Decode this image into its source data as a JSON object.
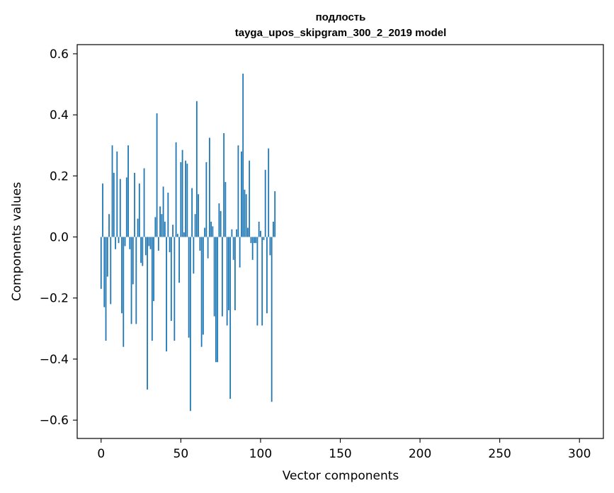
{
  "chart_data": {
    "type": "bar",
    "title": "подлость",
    "subtitle": "tayga_upos_skipgram_300_2_2019 model",
    "xlabel": "Vector components",
    "ylabel": "Components values",
    "xlim": [
      -15,
      315
    ],
    "ylim": [
      -0.66,
      0.63
    ],
    "xticks": [
      0,
      50,
      100,
      150,
      200,
      250,
      300
    ],
    "xtick_labels": [
      "0",
      "50",
      "100",
      "150",
      "200",
      "250",
      "300"
    ],
    "yticks": [
      -0.6,
      -0.4,
      -0.2,
      0.0,
      0.2,
      0.4,
      0.6
    ],
    "ytick_labels": [
      "−0.6",
      "−0.4",
      "−0.2",
      "0.0",
      "0.2",
      "0.4",
      "0.6"
    ],
    "bar_color": "#1f77b4",
    "grid": false,
    "values": [
      -0.17,
      0.175,
      -0.23,
      -0.34,
      -0.13,
      0.075,
      -0.22,
      0.3,
      0.21,
      -0.04,
      0.28,
      -0.02,
      0.19,
      -0.25,
      -0.36,
      -0.03,
      0.195,
      0.3,
      -0.04,
      -0.285,
      -0.155,
      0.21,
      -0.285,
      0.06,
      0.175,
      -0.085,
      -0.095,
      0.225,
      -0.06,
      -0.5,
      -0.03,
      -0.04,
      -0.34,
      -0.21,
      0.065,
      0.405,
      -0.045,
      0.1,
      0.075,
      0.165,
      0.05,
      -0.375,
      0.145,
      -0.05,
      -0.275,
      0.04,
      -0.34,
      0.31,
      0.01,
      -0.15,
      0.245,
      0.285,
      0.015,
      0.25,
      0.24,
      -0.33,
      -0.57,
      0.16,
      -0.12,
      0.075,
      0.445,
      0.14,
      -0.045,
      -0.36,
      -0.32,
      0.03,
      0.245,
      -0.07,
      0.325,
      0.05,
      0.035,
      -0.26,
      -0.41,
      -0.41,
      0.11,
      0.085,
      -0.26,
      0.34,
      0.18,
      -0.29,
      -0.24,
      -0.53,
      0.025,
      -0.075,
      -0.24,
      0.025,
      0.3,
      -0.1,
      0.28,
      0.535,
      0.155,
      0.14,
      0.03,
      0.25,
      -0.02,
      -0.075,
      -0.02,
      -0.02,
      -0.29,
      0.05,
      0.02,
      -0.29,
      -0.01,
      0.22,
      -0.25,
      0.29,
      -0.06,
      -0.54,
      0.05,
      0.15
    ]
  }
}
